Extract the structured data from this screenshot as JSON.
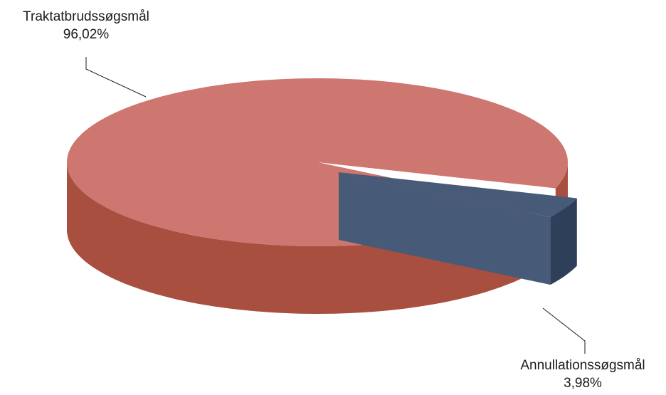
{
  "chart_data": {
    "type": "pie",
    "variant": "3d",
    "slices": [
      {
        "label": "Traktatbrudssøgsmål",
        "value": 96.02,
        "value_label": "96,02%",
        "color": "#ce7670",
        "side_color": "#a84f40",
        "exploded": false
      },
      {
        "label": "Annullationssøgsmål",
        "value": 3.98,
        "value_label": "3,98%",
        "color": "#475a78",
        "side_color": "#2e3f5a",
        "exploded": true
      }
    ],
    "legend": "none",
    "labels": "outside with leader lines"
  }
}
